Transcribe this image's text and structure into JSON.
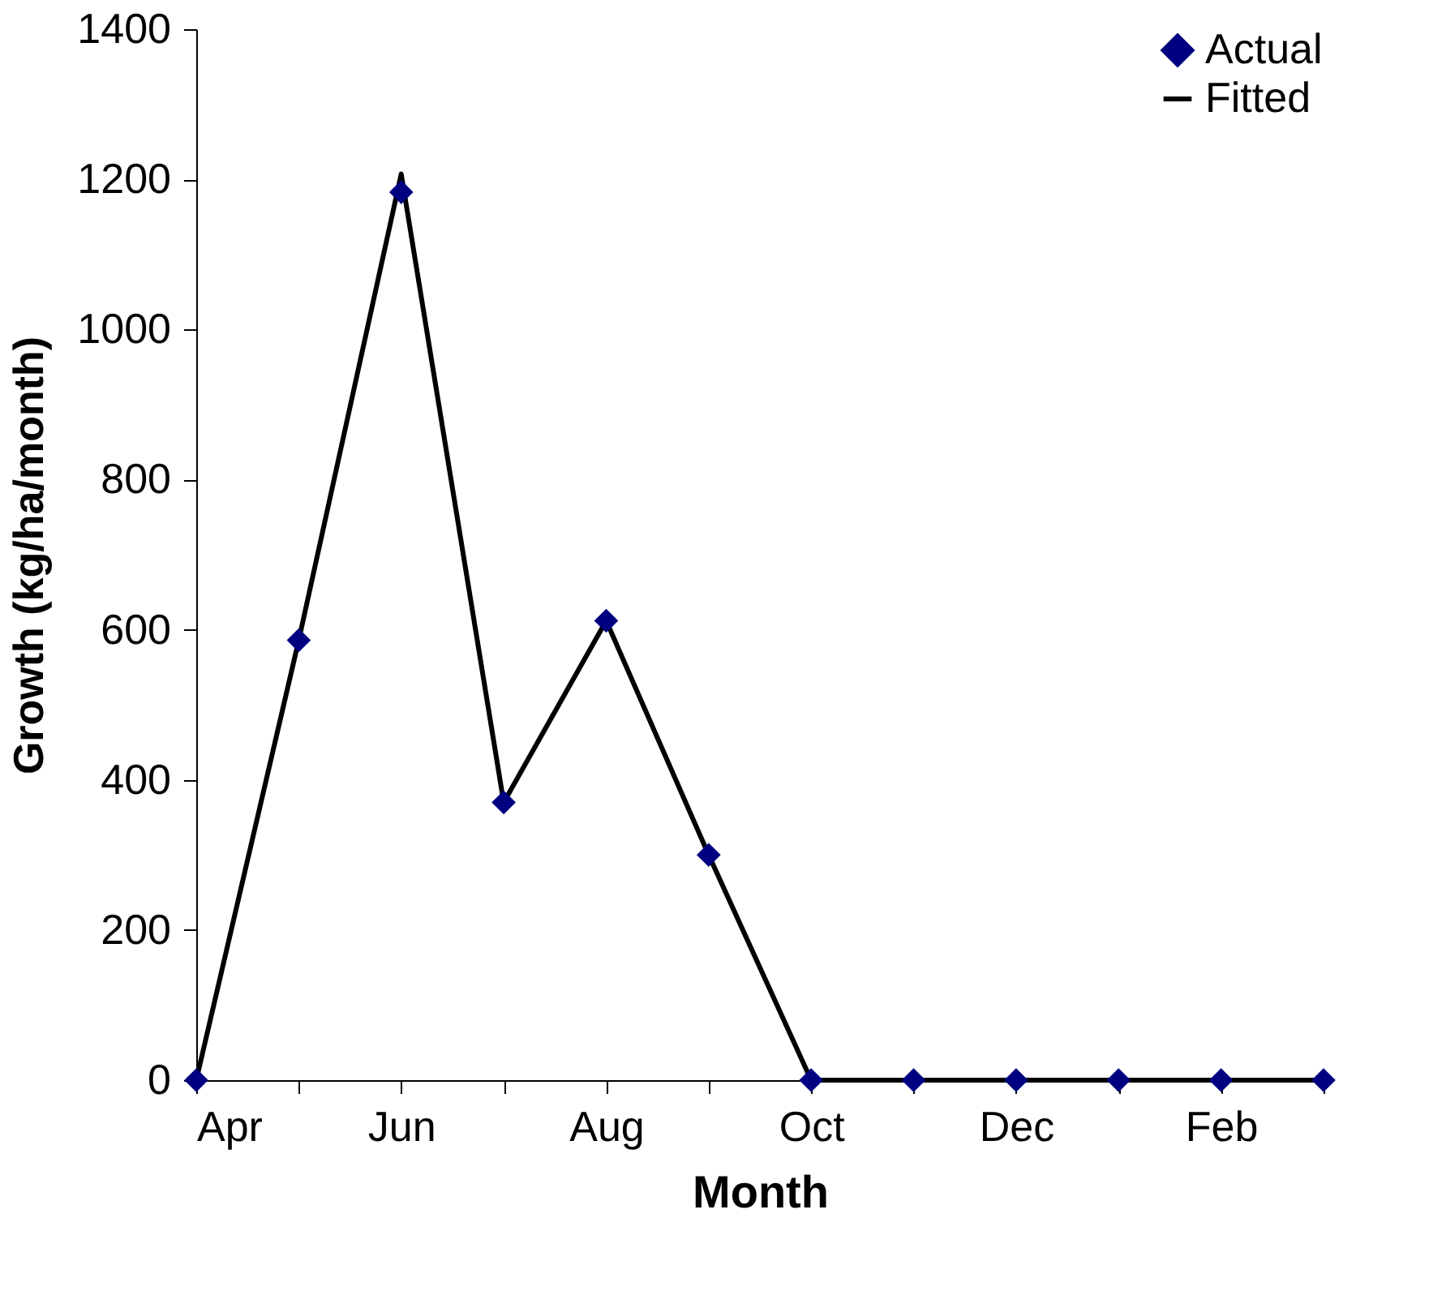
{
  "chart_data": {
    "type": "line",
    "xlabel": "Month",
    "ylabel": "Growth (kg/ha/month)",
    "categories": [
      "Apr",
      null,
      "Jun",
      null,
      "Aug",
      null,
      "Oct",
      null,
      "Dec",
      null,
      "Feb",
      null
    ],
    "series": [
      {
        "name": "Actual",
        "type": "scatter",
        "marker": "diamond",
        "color": "#000080",
        "values": [
          0,
          586,
          1183,
          370,
          612,
          300,
          0,
          0,
          0,
          0,
          0,
          0
        ]
      },
      {
        "name": "Fitted",
        "marker": "none",
        "line_style": "solid",
        "color": "#000000",
        "values": [
          0,
          586,
          1207,
          370,
          612,
          300,
          0,
          0,
          0,
          0,
          0,
          0
        ]
      }
    ],
    "ylim": [
      0,
      1400
    ],
    "yticks": [
      0,
      200,
      400,
      600,
      800,
      1000,
      1200,
      1400
    ],
    "grid": false,
    "legend": "top right"
  }
}
